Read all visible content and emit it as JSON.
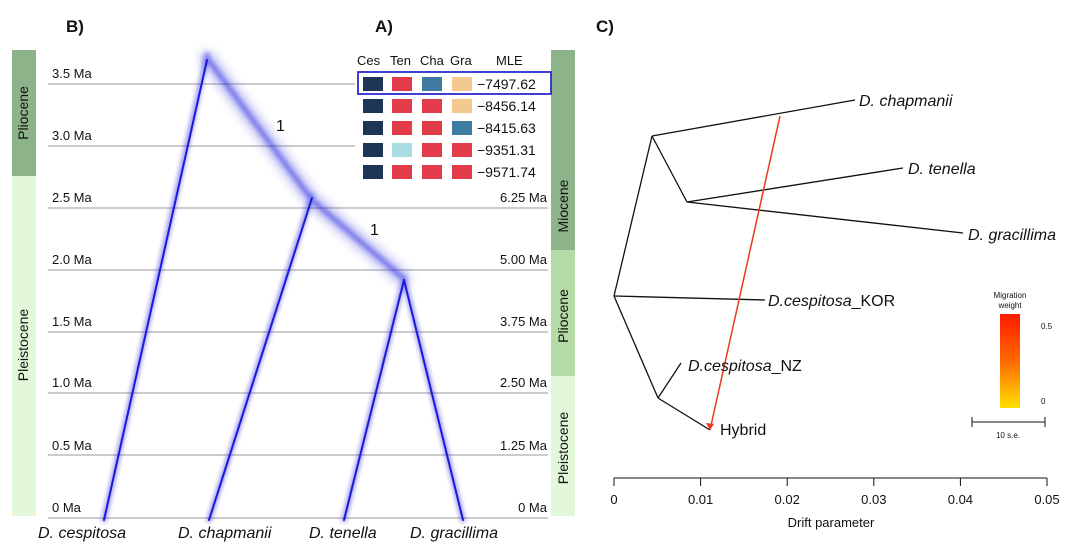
{
  "panels": {
    "a": "A)",
    "b": "B)",
    "c": "C)"
  },
  "panel_b": {
    "time_ticks": [
      "3.5 Ma",
      "3.0 Ma",
      "2.5  Ma",
      "2.0 Ma",
      "1.5 Ma",
      "1.0 Ma",
      "0.5 Ma",
      "0  Ma"
    ],
    "right_ticks": [
      "6.25 Ma",
      "5.00 Ma",
      "3.75 Ma",
      "2.50 Ma",
      "1.25 Ma",
      "0  Ma"
    ],
    "left_epochs": [
      "Pliocene",
      "Pleistocene"
    ],
    "right_epochs": [
      "Miocene",
      "Pliocene",
      "Pleistocene"
    ],
    "taxa": [
      "D. cespitosa",
      "D. chapmanii",
      "D. tenella",
      "D. gracillima"
    ],
    "node_support": [
      "1",
      "1"
    ]
  },
  "panel_a": {
    "headers": [
      "Ces",
      "Ten",
      "Cha",
      "Gra",
      "MLE"
    ],
    "rows": [
      {
        "colors": [
          "#1e3557",
          "#e23b4a",
          "#3f7aa1",
          "#f2c98e"
        ],
        "mle": "−7497.62",
        "highlight": true
      },
      {
        "colors": [
          "#1e3557",
          "#e23b4a",
          "#e23b4a",
          "#f2c98e"
        ],
        "mle": "−8456.14",
        "highlight": false
      },
      {
        "colors": [
          "#1e3557",
          "#e23b4a",
          "#e23b4a",
          "#3f7aa1"
        ],
        "mle": "−8415.63",
        "highlight": false
      },
      {
        "colors": [
          "#1e3557",
          "#a8dde3",
          "#e23b4a",
          "#e23b4a"
        ],
        "mle": "−9351.31",
        "highlight": false
      },
      {
        "colors": [
          "#1e3557",
          "#e23b4a",
          "#e23b4a",
          "#e23b4a"
        ],
        "mle": "−9571.74",
        "highlight": false
      }
    ]
  },
  "panel_c": {
    "tips": {
      "chapmanii": {
        "genus": "D. chapmanii",
        "suffix": ""
      },
      "tenella": {
        "genus": "D. tenella",
        "suffix": ""
      },
      "gracillima": {
        "genus": "D. gracillima",
        "suffix": ""
      },
      "kor": {
        "genus": "D.cespitosa",
        "suffix": "_KOR"
      },
      "nz": {
        "genus": "D.cespitosa",
        "suffix": "_NZ"
      },
      "hybrid": {
        "genus": "",
        "suffix": "Hybrid"
      }
    },
    "x_ticks": [
      "0",
      "0.01",
      "0.02",
      "0.03",
      "0.04",
      "0.05"
    ],
    "x_label": "Drift parameter",
    "legend": {
      "title_1": "Migration",
      "title_2": "weight",
      "max": "0.5",
      "min": "0",
      "scale": "10 s.e."
    },
    "colors": {
      "migration": "#e83a1c",
      "blue": "#1a1adb"
    }
  }
}
